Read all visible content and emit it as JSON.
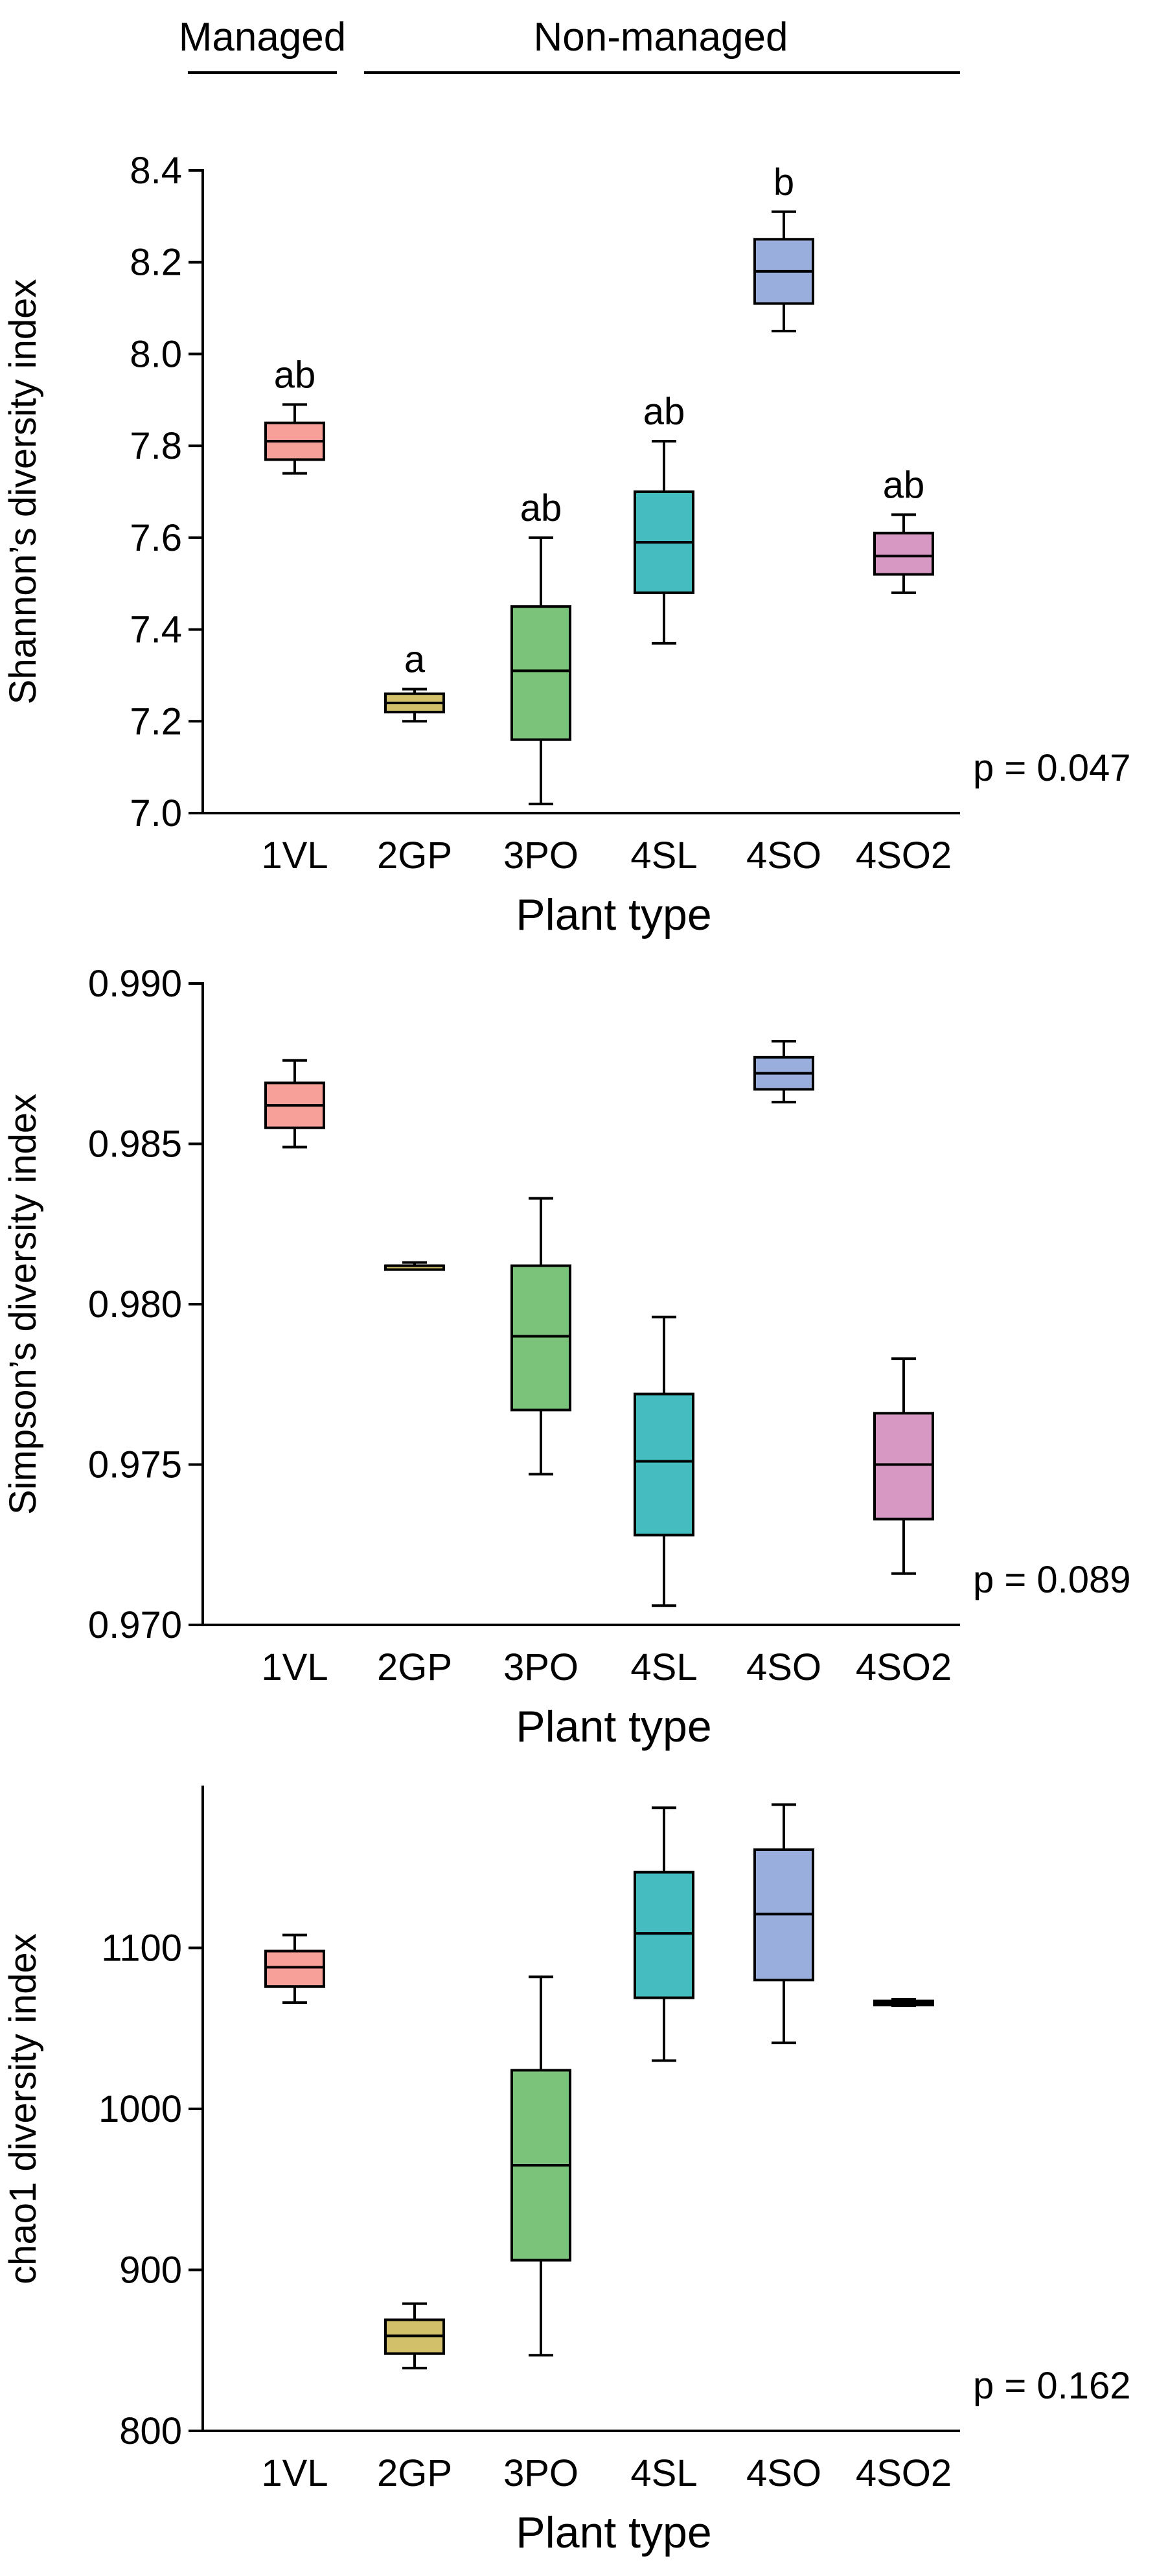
{
  "header": {
    "managed_label": "Managed",
    "nonmanaged_label": "Non-managed"
  },
  "chart_data": [
    {
      "type": "box",
      "ylabel": "Shannon’s diversity index",
      "xlabel": "Plant type",
      "ylim": [
        7.0,
        8.4
      ],
      "yticks": [
        "7.0",
        "7.2",
        "7.4",
        "7.6",
        "7.8",
        "8.0",
        "8.2",
        "8.4"
      ],
      "p_label": "p = 0.047",
      "categories": [
        "1VL",
        "2GP",
        "3PO",
        "4SL",
        "4SO",
        "4SO2"
      ],
      "boxes": [
        {
          "name": "1VL",
          "min": 7.74,
          "q1": 7.77,
          "median": 7.81,
          "q3": 7.85,
          "max": 7.89,
          "color": "#F7A09A",
          "sig": "ab"
        },
        {
          "name": "2GP",
          "min": 7.2,
          "q1": 7.22,
          "median": 7.24,
          "q3": 7.26,
          "max": 7.27,
          "color": "#D3C06A",
          "sig": "a"
        },
        {
          "name": "3PO",
          "min": 7.02,
          "q1": 7.16,
          "median": 7.31,
          "q3": 7.45,
          "max": 7.6,
          "color": "#7BC37B",
          "sig": "ab"
        },
        {
          "name": "4SL",
          "min": 7.37,
          "q1": 7.48,
          "median": 7.59,
          "q3": 7.7,
          "max": 7.81,
          "color": "#45BDC0",
          "sig": "ab"
        },
        {
          "name": "4SO",
          "min": 8.05,
          "q1": 8.11,
          "median": 8.18,
          "q3": 8.25,
          "max": 8.31,
          "color": "#99AEDC",
          "sig": "b"
        },
        {
          "name": "4SO2",
          "min": 7.48,
          "q1": 7.52,
          "median": 7.56,
          "q3": 7.61,
          "max": 7.65,
          "color": "#D898C4",
          "sig": "ab"
        }
      ]
    },
    {
      "type": "box",
      "ylabel": "Simpson’s diversity index",
      "xlabel": "Plant type",
      "ylim": [
        0.97,
        0.99
      ],
      "yticks": [
        "0.970",
        "0.975",
        "0.980",
        "0.985",
        "0.990"
      ],
      "p_label": "p = 0.089",
      "categories": [
        "1VL",
        "2GP",
        "3PO",
        "4SL",
        "4SO",
        "4SO2"
      ],
      "boxes": [
        {
          "name": "1VL",
          "min": 0.9849,
          "q1": 0.9855,
          "median": 0.9862,
          "q3": 0.9869,
          "max": 0.9876,
          "color": "#F7A09A"
        },
        {
          "name": "2GP",
          "min": 0.9811,
          "q1": 0.9811,
          "median": 0.9812,
          "q3": 0.9812,
          "max": 0.9813,
          "color": "#D3C06A"
        },
        {
          "name": "3PO",
          "min": 0.9747,
          "q1": 0.9767,
          "median": 0.979,
          "q3": 0.9812,
          "max": 0.9833,
          "color": "#7BC37B"
        },
        {
          "name": "4SL",
          "min": 0.9706,
          "q1": 0.9728,
          "median": 0.9751,
          "q3": 0.9772,
          "max": 0.9796,
          "color": "#45BDC0"
        },
        {
          "name": "4SO",
          "min": 0.9863,
          "q1": 0.9867,
          "median": 0.9872,
          "q3": 0.9877,
          "max": 0.9882,
          "color": "#99AEDC"
        },
        {
          "name": "4SO2",
          "min": 0.9716,
          "q1": 0.9733,
          "median": 0.975,
          "q3": 0.9766,
          "max": 0.9783,
          "color": "#D898C4"
        }
      ]
    },
    {
      "type": "box",
      "ylabel": "chao1 diversity index",
      "xlabel": "Plant type",
      "ylim": [
        800,
        1200
      ],
      "yticks": [
        "800",
        "900",
        "1000",
        "1100"
      ],
      "p_label": "p = 0.162",
      "categories": [
        "1VL",
        "2GP",
        "3PO",
        "4SL",
        "4SO",
        "4SO2"
      ],
      "boxes": [
        {
          "name": "1VL",
          "min": 1066,
          "q1": 1076,
          "median": 1088,
          "q3": 1098,
          "max": 1108,
          "color": "#F7A09A"
        },
        {
          "name": "2GP",
          "min": 839,
          "q1": 848,
          "median": 859,
          "q3": 869,
          "max": 879,
          "color": "#D3C06A"
        },
        {
          "name": "3PO",
          "min": 847,
          "q1": 906,
          "median": 965,
          "q3": 1024,
          "max": 1082,
          "color": "#7BC37B"
        },
        {
          "name": "4SL",
          "min": 1030,
          "q1": 1069,
          "median": 1109,
          "q3": 1147,
          "max": 1187,
          "color": "#45BDC0"
        },
        {
          "name": "4SO",
          "min": 1041,
          "q1": 1080,
          "median": 1121,
          "q3": 1161,
          "max": 1189,
          "color": "#99AEDC"
        },
        {
          "name": "4SO2",
          "min": 1064,
          "q1": 1065,
          "median": 1066,
          "q3": 1067,
          "max": 1068,
          "color": "#D898C4"
        }
      ]
    }
  ]
}
